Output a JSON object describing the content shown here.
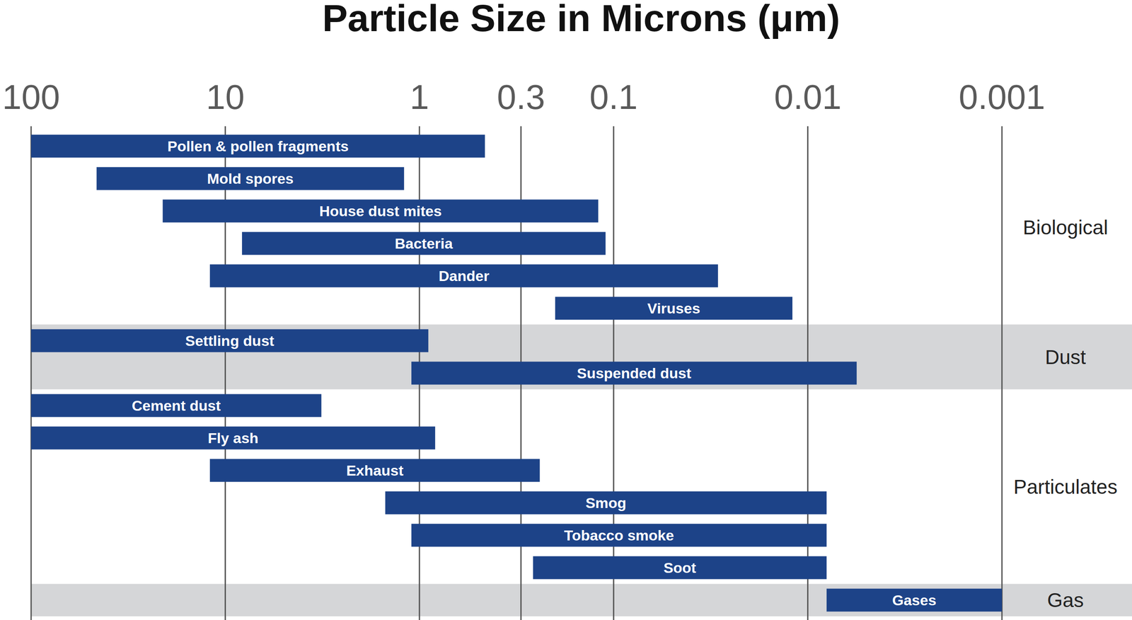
{
  "chart_data": {
    "type": "bar",
    "orientation": "horizontal",
    "log": "x",
    "grid": true,
    "title": "Particle Size in Microns (μm)",
    "categories": [
      "Pollen & pollen fragments",
      "Mold spores",
      "House dust mites",
      "Bacteria",
      "Dander",
      "Viruses",
      "Settling dust",
      "Suspended dust",
      "Cement dust",
      "Fly ash",
      "Exhaust",
      "Smog",
      "Tobacco smoke",
      "Soot",
      "Gases"
    ],
    "groups": [
      "Biological",
      "Biological",
      "Biological",
      "Biological",
      "Biological",
      "Biological",
      "Dust",
      "Dust",
      "Particulates",
      "Particulates",
      "Particulates",
      "Particulates",
      "Particulates",
      "Particulates",
      "Gas"
    ],
    "values": [
      [
        100,
        0.46
      ],
      [
        46,
        1.2
      ],
      [
        21,
        0.12
      ],
      [
        8.2,
        0.11
      ],
      [
        12,
        0.029
      ],
      [
        0.2,
        0.012
      ],
      [
        100,
        0.9
      ],
      [
        1.1,
        0.0056
      ],
      [
        100,
        3.2
      ],
      [
        100,
        0.83
      ],
      [
        12,
        0.24
      ],
      [
        1.5,
        0.008
      ],
      [
        1.1,
        0.008
      ],
      [
        0.26,
        0.008
      ],
      [
        0.008,
        0.001
      ]
    ],
    "color": "#1d4388",
    "xlim": [
      100,
      0.001
    ],
    "xticks": [
      100,
      10,
      1,
      0.3,
      0.1,
      0.01,
      0.001
    ]
  }
}
